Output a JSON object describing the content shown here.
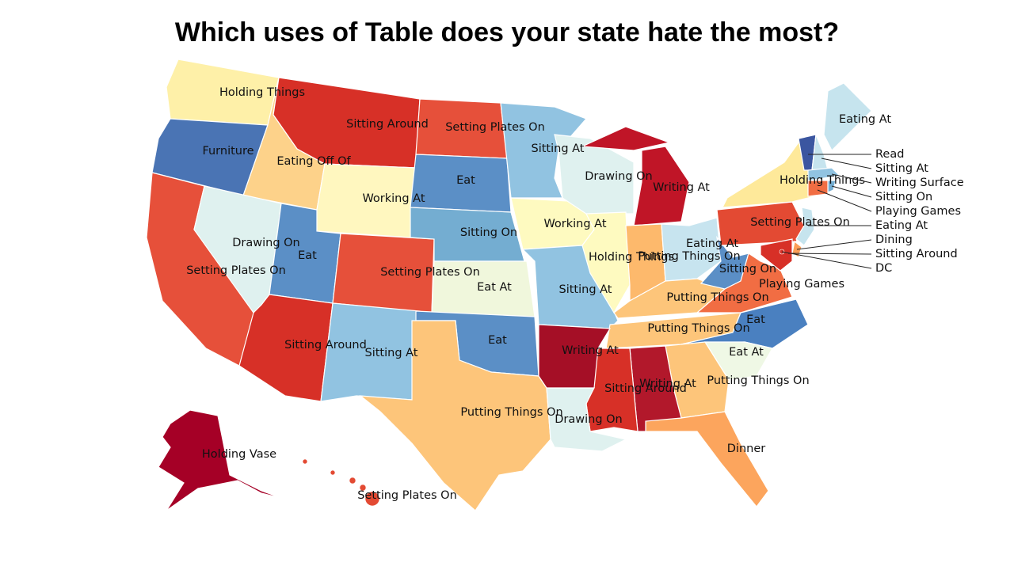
{
  "title": "Which uses of Table does your state hate the most?",
  "regions": [
    {
      "label": "Holding Things",
      "color": "#fef0a8"
    },
    {
      "label": "Furniture",
      "color": "#4a74b4"
    },
    {
      "label": "Setting Plates On",
      "color": "#e6503a"
    },
    {
      "label": "Eating Off Of",
      "color": "#fdd28a"
    },
    {
      "label": "Drawing On",
      "color": "#dff1ef"
    },
    {
      "label": "Sitting Around",
      "color": "#d73027"
    },
    {
      "label": "Working At",
      "color": "#fff7bf"
    },
    {
      "label": "Eat",
      "color": "#5b8fc6"
    },
    {
      "label": "Sitting Around",
      "color": "#d73027"
    },
    {
      "label": "Setting Plates On",
      "color": "#e6503a"
    },
    {
      "label": "Sitting At",
      "color": "#91c3e1"
    },
    {
      "label": "Setting Plates On",
      "color": "#e6503a"
    },
    {
      "label": "Eat",
      "color": "#5b8fc6"
    },
    {
      "label": "Sitting On",
      "color": "#74add1"
    },
    {
      "label": "Eat At",
      "color": "#f0f7dc"
    },
    {
      "label": "Eat",
      "color": "#5b8fc6"
    },
    {
      "label": "Putting Things On",
      "color": "#fdc57a"
    },
    {
      "label": "Sitting At",
      "color": "#91c3e1"
    },
    {
      "label": "Working At",
      "color": "#fefac0"
    },
    {
      "label": "Sitting At",
      "color": "#91c3e1"
    },
    {
      "label": "Drawing On",
      "color": "#dff1ef"
    },
    {
      "label": "Holding Things",
      "color": "#fefac0"
    },
    {
      "label": "Writing At",
      "color": "#c01527"
    },
    {
      "label": "Putting Things On",
      "color": "#fdb96c"
    },
    {
      "label": "Eating At",
      "color": "#c7e4ef"
    },
    {
      "label": "Putting Things On",
      "color": "#fdc57a"
    },
    {
      "label": "Putting Things On",
      "color": "#fdc57a"
    },
    {
      "label": "Sitting On",
      "color": "#5b8fc6"
    },
    {
      "label": "Playing Games",
      "color": "#f16d43"
    },
    {
      "label": "Eat",
      "color": "#4a80c0"
    },
    {
      "label": "Eat At",
      "color": "#eff8e5"
    },
    {
      "label": "Putting Things On",
      "color": "#fdc57a"
    },
    {
      "label": "Dinner",
      "color": "#fca55d"
    },
    {
      "label": "Writing At",
      "color": "#b2182b"
    },
    {
      "label": "Sitting Around",
      "color": "#d73027"
    },
    {
      "label": "Drawing On",
      "color": "#dff1ef"
    },
    {
      "label": "Writing At",
      "color": "#a50f26"
    },
    {
      "label": "Setting Plates On",
      "color": "#e34a33"
    },
    {
      "label": "Holding Things",
      "color": "#fee99a"
    },
    {
      "label": "Eating At",
      "color": "#c6e4ee"
    },
    {
      "label": "Read",
      "color": "#3b56a0"
    },
    {
      "label": "Sitting At",
      "color": "#c6e4ee"
    },
    {
      "label": "Writing Surface",
      "color": "#91c3e1"
    },
    {
      "label": "Sitting On",
      "color": "#74add1"
    },
    {
      "label": "Playing Games",
      "color": "#f16d43"
    },
    {
      "label": "Eating At",
      "color": "#c6e4ee"
    },
    {
      "label": "Dining",
      "color": "#fc9f58"
    },
    {
      "label": "Sitting Around",
      "color": "#d73027"
    },
    {
      "label": "DC",
      "color": "#d73027"
    },
    {
      "label": "Holding Vase",
      "color": "#a50026"
    },
    {
      "label": "Setting Plates On",
      "color": "#e34a33"
    }
  ]
}
